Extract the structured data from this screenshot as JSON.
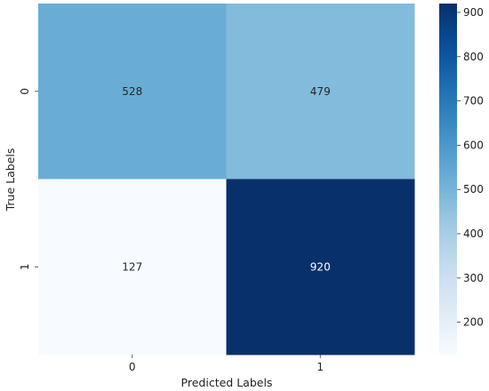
{
  "chart_data": {
    "type": "heatmap",
    "title": "",
    "xlabel": "Predicted Labels",
    "ylabel": "True Labels",
    "x_categories": [
      "0",
      "1"
    ],
    "y_categories": [
      "0",
      "1"
    ],
    "values": [
      [
        528,
        479
      ],
      [
        127,
        920
      ]
    ],
    "colorbar": {
      "colormap": "Blues",
      "min": 127,
      "max": 920,
      "ticks": [
        200,
        300,
        400,
        500,
        600,
        700,
        800,
        900
      ]
    }
  }
}
